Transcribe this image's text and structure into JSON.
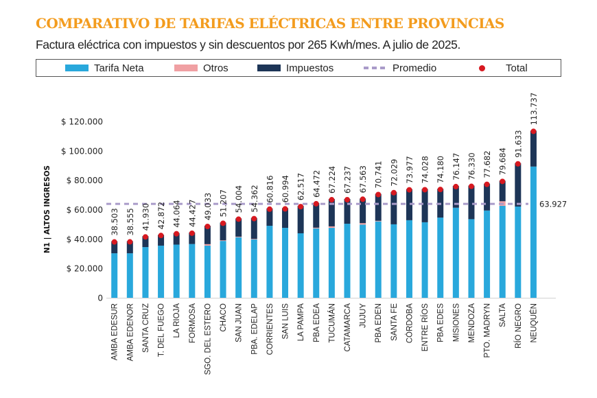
{
  "header": {
    "title": "COMPARATIVO DE TARIFAS ELÉCTRICAS ENTRE PROVINCIAS",
    "subtitle": "Factura eléctrica con impuestos y sin descuentos por 265 Kwh/mes. A julio de 2025."
  },
  "legend": [
    {
      "label": "Tarifa Neta",
      "kind": "bar",
      "color": "#29a8dc"
    },
    {
      "label": "Otros",
      "kind": "bar",
      "color": "#f0a0a3"
    },
    {
      "label": "Impuestos",
      "kind": "bar",
      "color": "#1d3557"
    },
    {
      "label": "Promedio",
      "kind": "dashed-line",
      "color": "#a99bc9"
    },
    {
      "label": "Total",
      "kind": "dot",
      "color": "#d71920"
    }
  ],
  "chart_data": {
    "type": "bar",
    "stacked": true,
    "title": "COMPARATIVO DE TARIFAS ELÉCTRICAS ENTRE PROVINCIAS",
    "subtitle": "Factura eléctrica con impuestos y sin descuentos por 265 Kwh/mes. A julio de 2025.",
    "xlabel": "",
    "ylabel": "N1 | ALTOS INGRESOS",
    "ylim": [
      0,
      120000
    ],
    "yticks": [
      0,
      20000,
      40000,
      60000,
      80000,
      100000,
      120000
    ],
    "ytick_labels": [
      "0",
      "$ 20.000",
      "$ 40.000",
      "$ 60.000",
      "$ 80.000",
      "$ 100.000",
      "$ 120.000"
    ],
    "grid": false,
    "legend_position": "top",
    "categories": [
      "AMBA EDESUR",
      "AMBA EDENOR",
      "SANTA CRUZ",
      "T. DEL FUEGO",
      "LA RIOJA",
      "FORMOSA",
      "SGO. DEL ESTERO",
      "CHACO",
      "SAN JUAN",
      "PBA. EDELAP",
      "CORRIENTES",
      "SAN LUIS",
      "LA PAMPA",
      "PBA EDEA",
      "TUCUMÁN",
      "CATAMARCA",
      "JUJUY",
      "PBA EDEN",
      "SANTA FE",
      "CÓRDOBA",
      "ENTRE RÍOS",
      "PBA EDES",
      "MISIONES",
      "MENDOZA",
      "PTO. MADRYN",
      "SALTA",
      "RÍO NEGRO",
      "NEUQUÉN"
    ],
    "series": [
      {
        "name": "Tarifa Neta",
        "color": "#29a8dc",
        "values": [
          30300,
          30300,
          34500,
          35500,
          36200,
          36600,
          35500,
          38700,
          41200,
          39700,
          49000,
          47600,
          43900,
          47200,
          47600,
          50400,
          49800,
          52000,
          50000,
          52800,
          51400,
          54600,
          61300,
          53500,
          59400,
          62600,
          62100,
          89300
        ]
      },
      {
        "name": "Otros",
        "color": "#f0a0a3",
        "values": [
          0,
          0,
          0,
          0,
          0,
          0,
          1000,
          400,
          400,
          400,
          0,
          0,
          0,
          500,
          1000,
          0,
          1000,
          400,
          0,
          0,
          0,
          0,
          0,
          0,
          0,
          3100,
          0,
          0
        ]
      },
      {
        "name": "Impuestos",
        "color": "#1d3557",
        "values": [
          8203,
          8255,
          7430,
          7372,
          7864,
          7827,
          12533,
          12107,
          12404,
          14262,
          11816,
          13394,
          18617,
          16772,
          18624,
          16837,
          16763,
          18341,
          22029,
          21177,
          22628,
          19580,
          14847,
          22830,
          18282,
          13984,
          29533,
          24437
        ]
      },
      {
        "name": "Total",
        "color": "#d71920",
        "values": [
          38503,
          38555,
          41930,
          42872,
          44064,
          44427,
          49033,
          51207,
          54004,
          54362,
          60816,
          60994,
          62517,
          64472,
          67224,
          67237,
          67563,
          70741,
          72029,
          73977,
          74028,
          74180,
          76147,
          76330,
          77682,
          79684,
          91633,
          113737
        ]
      }
    ],
    "total_labels": [
      "38.503",
      "38.555",
      "41.930",
      "42.872",
      "44.064",
      "44.427",
      "49.033",
      "51.207",
      "54.004",
      "54.362",
      "60.816",
      "60.994",
      "62.517",
      "64.472",
      "67.224",
      "67.237",
      "67.563",
      "70.741",
      "72.029",
      "73.977",
      "74.028",
      "74.180",
      "76.147",
      "76.330",
      "77.682",
      "79.684",
      "91.633",
      "113.737"
    ],
    "average": {
      "name": "Promedio",
      "value": 63927,
      "label": "63.927",
      "color": "#a99bc9"
    }
  }
}
